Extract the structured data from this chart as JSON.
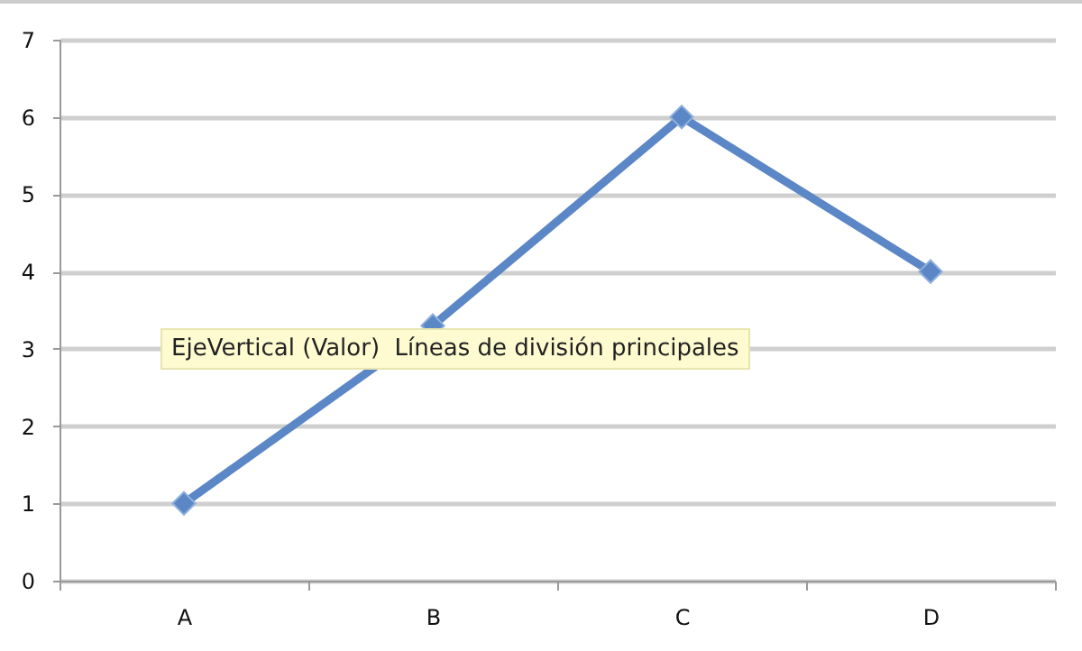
{
  "chart_data": {
    "type": "line",
    "categories": [
      "A",
      "B",
      "C",
      "D"
    ],
    "series": [
      {
        "color": "#5b87c6",
        "values": [
          1,
          3.3,
          6,
          4
        ]
      }
    ],
    "ylim": [
      0,
      7
    ],
    "yticks": [
      0,
      1,
      2,
      3,
      4,
      5,
      6,
      7
    ],
    "grid": "y",
    "marker": "diamond",
    "line_style": "solid",
    "annotations": [
      "EjeVertical (Valor)  Líneas de división principales"
    ]
  }
}
